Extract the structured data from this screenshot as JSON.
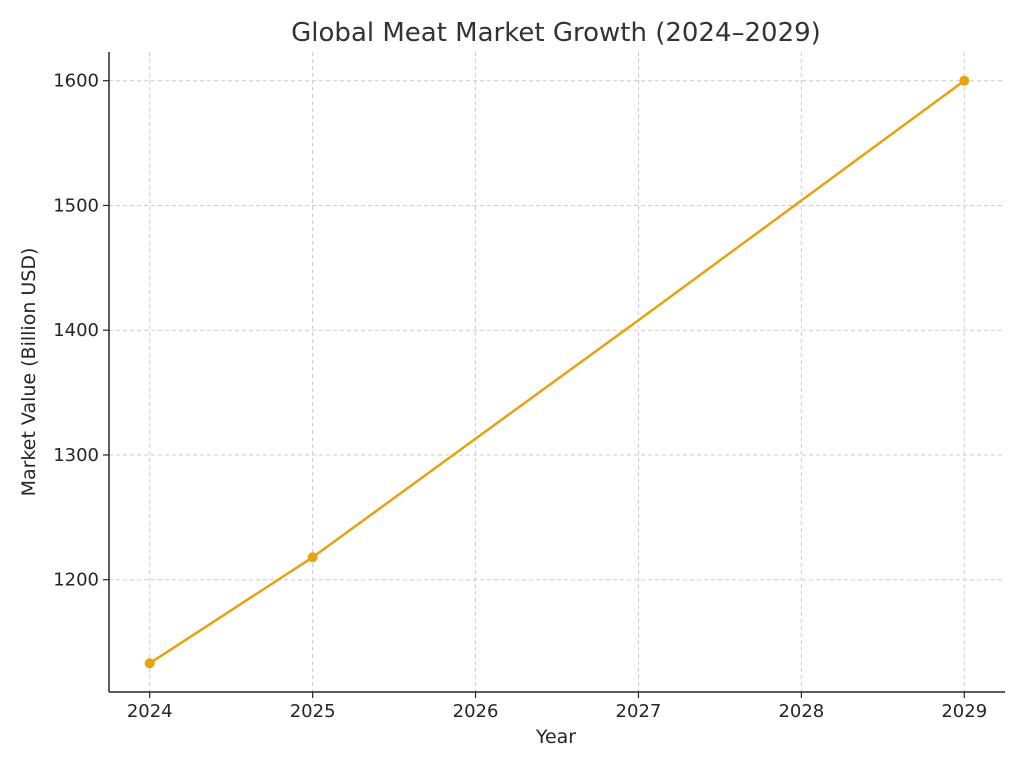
{
  "chart_data": {
    "type": "line",
    "title": "Global Meat Market Growth (2024–2029)",
    "xlabel": "Year",
    "ylabel": "Market Value (Billion USD)",
    "xlim": [
      2023.75,
      2029.25
    ],
    "ylim": [
      1110,
      1623
    ],
    "x_ticks": [
      2024,
      2025,
      2026,
      2027,
      2028,
      2029
    ],
    "y_ticks": [
      1200,
      1300,
      1400,
      1500,
      1600
    ],
    "grid": true,
    "series": [
      {
        "color": "#E8A10F",
        "line_x": [
          2024,
          2025,
          2026,
          2027,
          2028,
          2029
        ],
        "line_y": [
          1133,
          1218,
          1313,
          1408,
          1504,
          1600
        ],
        "marker_x": [
          2024,
          2025,
          2029
        ],
        "marker_y": [
          1133,
          1218,
          1600
        ]
      }
    ]
  }
}
